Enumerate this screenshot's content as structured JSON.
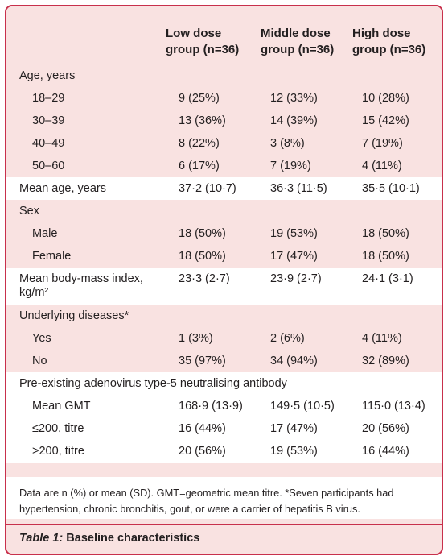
{
  "columns": [
    [
      "Low dose",
      "group (n=36)"
    ],
    [
      "Middle dose",
      "group (n=36)"
    ],
    [
      "High dose",
      "group (n=36)"
    ]
  ],
  "rows": [
    {
      "label": "Age, years",
      "indent": false,
      "white": false,
      "values": [
        "",
        "",
        ""
      ]
    },
    {
      "label": "18–29",
      "indent": true,
      "white": false,
      "values": [
        "9 (25%)",
        "12 (33%)",
        "10 (28%)"
      ]
    },
    {
      "label": "30–39",
      "indent": true,
      "white": false,
      "values": [
        "13 (36%)",
        "14 (39%)",
        "15 (42%)"
      ]
    },
    {
      "label": "40–49",
      "indent": true,
      "white": false,
      "values": [
        "8 (22%)",
        "3 (8%)",
        "7 (19%)"
      ]
    },
    {
      "label": "50–60",
      "indent": true,
      "white": false,
      "values": [
        "6 (17%)",
        "7 (19%)",
        "4 (11%)"
      ]
    },
    {
      "label": "Mean age, years",
      "indent": false,
      "white": true,
      "values": [
        "37·2 (10·7)",
        "36·3 (11·5)",
        "35·5 (10·1)"
      ]
    },
    {
      "label": "Sex",
      "indent": false,
      "white": false,
      "values": [
        "",
        "",
        ""
      ]
    },
    {
      "label": "Male",
      "indent": true,
      "white": false,
      "values": [
        "18 (50%)",
        "19 (53%)",
        "18 (50%)"
      ]
    },
    {
      "label": "Female",
      "indent": true,
      "white": false,
      "values": [
        "18 (50%)",
        "17 (47%)",
        "18 (50%)"
      ]
    },
    {
      "label": "Mean body-mass index, kg/m²",
      "indent": false,
      "white": true,
      "tall": true,
      "values": [
        "23·3 (2·7)",
        "23·9 (2·7)",
        "24·1 (3·1)"
      ]
    },
    {
      "label": "Underlying diseases*",
      "indent": false,
      "white": false,
      "values": [
        "",
        "",
        ""
      ]
    },
    {
      "label": "Yes",
      "indent": true,
      "white": false,
      "values": [
        "1 (3%)",
        "2 (6%)",
        "4 (11%)"
      ]
    },
    {
      "label": "No",
      "indent": true,
      "white": false,
      "values": [
        "35 (97%)",
        "34 (94%)",
        "32 (89%)"
      ]
    },
    {
      "label": "Pre-existing adenovirus type-5 neutralising antibody",
      "indent": false,
      "white": true,
      "values": [
        "",
        "",
        ""
      ]
    },
    {
      "label": "Mean GMT",
      "indent": true,
      "white": true,
      "values": [
        "168·9 (13·9)",
        "149·5 (10·5)",
        "115·0 (13·4)"
      ]
    },
    {
      "label": "≤200, titre",
      "indent": true,
      "white": true,
      "values": [
        "16 (44%)",
        "17 (47%)",
        "20 (56%)"
      ]
    },
    {
      "label": ">200, titre",
      "indent": true,
      "white": true,
      "values": [
        "20 (56%)",
        "19 (53%)",
        "16 (44%)"
      ]
    }
  ],
  "footnote": "Data are n (%) or mean (SD). GMT=geometric mean titre. *Seven participants had hypertension, chronic bronchitis, gout, or were a carrier of hepatitis B virus.",
  "caption": {
    "label": "Table 1:",
    "title": "Baseline characteristics"
  },
  "colors": {
    "border": "#c8304c",
    "panel_bg": "#f9e2e1",
    "row_white": "#ffffff",
    "text": "#231f20"
  }
}
